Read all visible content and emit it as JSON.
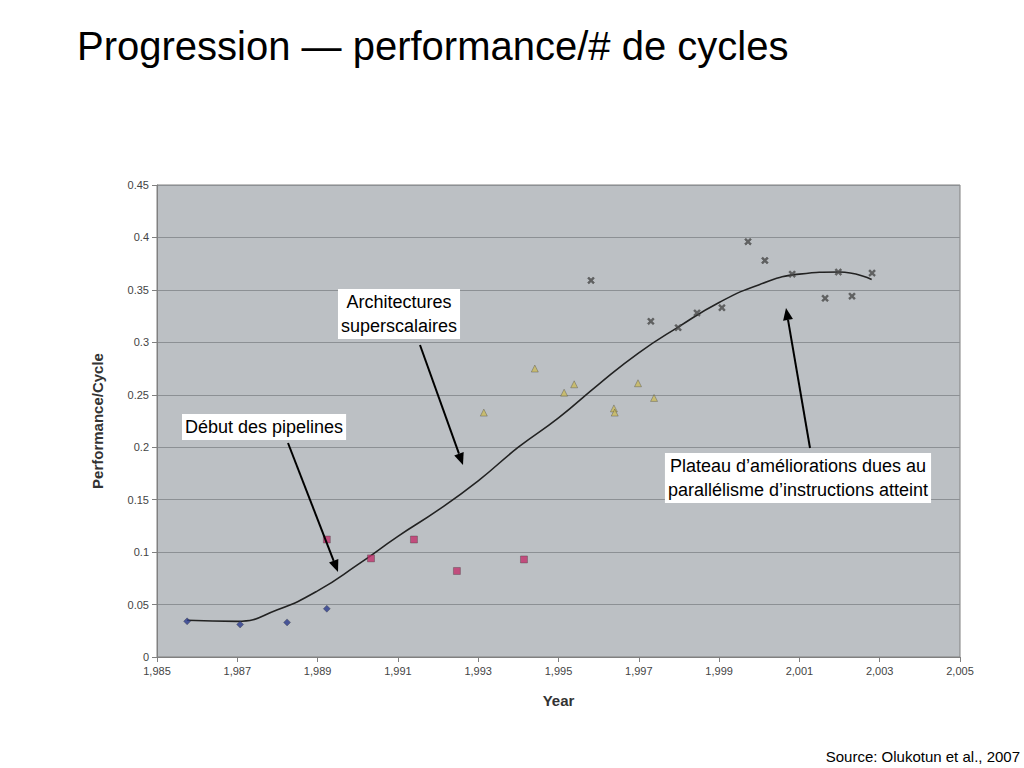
{
  "chart_data": {
    "type": "scatter",
    "title": "Progression — performance/# de cycles",
    "x_label": "Year",
    "y_label": "Performance/Cycle",
    "xlim": [
      1985,
      2005
    ],
    "xticks": [
      1985,
      1987,
      1989,
      1991,
      1993,
      1995,
      1997,
      1999,
      2001,
      2003,
      2005
    ],
    "ylim": [
      0,
      0.45
    ],
    "yticks": [
      0,
      0.05,
      0.1,
      0.15,
      0.2,
      0.25,
      0.3,
      0.35,
      0.4,
      0.45
    ],
    "grid": true,
    "series": [
      {
        "type": "scatter",
        "color": "#2b3a8c",
        "marker": "diamond",
        "x": [
          1985.75,
          1987.07,
          1988.24,
          1989.23
        ],
        "values": [
          0.034,
          0.031,
          0.033,
          0.046
        ]
      },
      {
        "type": "scatter",
        "color": "#c2306c",
        "marker": "square",
        "x": [
          1989.23,
          1990.33,
          1991.4,
          1992.47,
          1994.14
        ],
        "values": [
          0.112,
          0.094,
          0.112,
          0.082,
          0.093
        ]
      },
      {
        "type": "scatter",
        "color": "#c9b95c",
        "marker": "triangle",
        "x": [
          1993.14,
          1994.41,
          1995.14,
          1995.39,
          1996.38,
          1996.4,
          1996.98,
          1997.38
        ],
        "values": [
          0.233,
          0.275,
          0.252,
          0.26,
          0.237,
          0.233,
          0.261,
          0.247
        ]
      },
      {
        "type": "scatter",
        "color": "#4a4a4a",
        "marker": "x",
        "x": [
          1995.81,
          1997.3,
          1997.98,
          1998.45,
          1999.07,
          1999.72,
          2000.14,
          2000.82,
          2001.64,
          2001.97,
          2002.31,
          2002.81
        ],
        "values": [
          0.359,
          0.32,
          0.314,
          0.328,
          0.333,
          0.396,
          0.378,
          0.365,
          0.342,
          0.367,
          0.344,
          0.366
        ]
      },
      {
        "type": "line",
        "color": "#222222",
        "marker": "none",
        "line_style": "solid",
        "x": [
          1985.75,
          1987,
          1988,
          1989,
          1990,
          1991,
          1992,
          1993,
          1994,
          1995,
          1996,
          1997,
          1998,
          1999,
          2000,
          2001,
          2002,
          2002.8
        ],
        "values": [
          0.035,
          0.034,
          0.045,
          0.063,
          0.088,
          0.115,
          0.14,
          0.168,
          0.2,
          0.228,
          0.26,
          0.29,
          0.315,
          0.338,
          0.355,
          0.365,
          0.367,
          0.36
        ]
      }
    ],
    "annotations": [
      "Architectures\nsuperscalaires",
      "Début des pipelines",
      "Plateau d’améliorations dues au\nparallélisme d’instructions atteint"
    ],
    "source": "Source: Olukotun et al., 2007"
  }
}
